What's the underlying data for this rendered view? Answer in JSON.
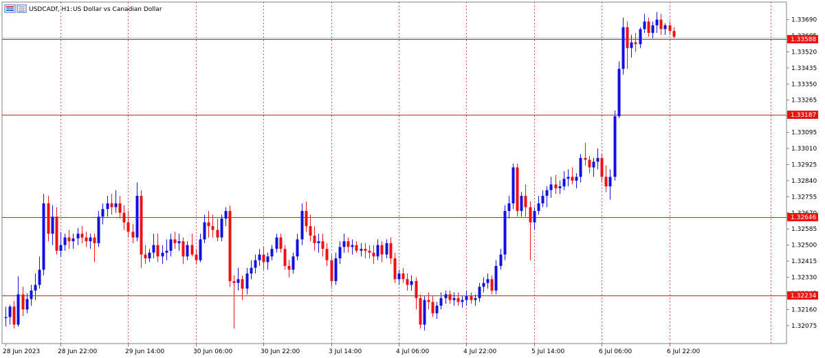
{
  "header": {
    "symbol": "USDCADf, H1:",
    "description": "US Dollar vs Canadian Dollar",
    "icon": "chart-window-icon"
  },
  "colors": {
    "bull": "#1010e0",
    "bear": "#ee1111",
    "grid": "#dd2222",
    "hline": "#cc2222",
    "bid": "#555555",
    "label_bg": "#ee1111"
  },
  "chart_data": {
    "type": "candlestick",
    "symbol": "USDCADf",
    "timeframe": "H1",
    "ylim": [
      1.3202,
      1.3375
    ],
    "y_ticks": [
      "1.33690",
      "1.33605",
      "1.33520",
      "1.33435",
      "1.33350",
      "1.33265",
      "1.33180",
      "1.33095",
      "1.33010",
      "1.32925",
      "1.32840",
      "1.32755",
      "1.32670",
      "1.32585",
      "1.32500",
      "1.32415",
      "1.32330",
      "1.32245",
      "1.32160",
      "1.32075"
    ],
    "x_labels": [
      {
        "index": 0,
        "label": "28 Jun 2023"
      },
      {
        "index": 13,
        "label": "28 Jun 22:00"
      },
      {
        "index": 29,
        "label": "29 Jun 14:00"
      },
      {
        "index": 45,
        "label": "30 Jun 06:00"
      },
      {
        "index": 61,
        "label": "30 Jun 22:00"
      },
      {
        "index": 77,
        "label": "3 Jul 14:00"
      },
      {
        "index": 93,
        "label": "4 Jul 06:00"
      },
      {
        "index": 109,
        "label": "4 Jul 22:00"
      },
      {
        "index": 125,
        "label": "5 Jul 14:00"
      },
      {
        "index": 141,
        "label": "6 Jul 06:00"
      },
      {
        "index": 157,
        "label": "6 Jul 22:00"
      }
    ],
    "extra_gridline_indices": [
      181
    ],
    "horizontal_lines": [
      {
        "price": 1.33187,
        "label": "1.33187"
      },
      {
        "price": 1.32646,
        "label": "1.32646"
      },
      {
        "price": 1.32234,
        "label": "1.32234"
      }
    ],
    "bid_line": {
      "price": 1.33588,
      "label": "1.33588"
    },
    "candles": [
      [
        1.32115,
        1.32175,
        1.3207,
        1.3212
      ],
      [
        1.3212,
        1.32185,
        1.3208,
        1.32175
      ],
      [
        1.32175,
        1.32205,
        1.3206,
        1.3208
      ],
      [
        1.3208,
        1.32335,
        1.3207,
        1.3224
      ],
      [
        1.3224,
        1.3228,
        1.32125,
        1.3216
      ],
      [
        1.3216,
        1.32245,
        1.3214,
        1.32215
      ],
      [
        1.32215,
        1.3229,
        1.3218,
        1.3226
      ],
      [
        1.3226,
        1.3235,
        1.3221,
        1.3229
      ],
      [
        1.3229,
        1.3244,
        1.3227,
        1.3237
      ],
      [
        1.3237,
        1.3277,
        1.3234,
        1.3272
      ],
      [
        1.3272,
        1.3276,
        1.3252,
        1.3256
      ],
      [
        1.3256,
        1.3271,
        1.325,
        1.3265
      ],
      [
        1.3265,
        1.327,
        1.3245,
        1.3247
      ],
      [
        1.3247,
        1.3257,
        1.3244,
        1.325
      ],
      [
        1.325,
        1.3256,
        1.3247,
        1.3254
      ],
      [
        1.3254,
        1.3258,
        1.3248,
        1.3252
      ],
      [
        1.3252,
        1.3256,
        1.3248,
        1.32535
      ],
      [
        1.32535,
        1.3259,
        1.325,
        1.3256
      ],
      [
        1.3256,
        1.326,
        1.3251,
        1.3254
      ],
      [
        1.3254,
        1.3257,
        1.3249,
        1.3252
      ],
      [
        1.3252,
        1.3256,
        1.3248,
        1.3254
      ],
      [
        1.3254,
        1.3256,
        1.3241,
        1.3251
      ],
      [
        1.3251,
        1.3268,
        1.3249,
        1.3265
      ],
      [
        1.3265,
        1.3272,
        1.3261,
        1.3269
      ],
      [
        1.3269,
        1.3276,
        1.3265,
        1.3272
      ],
      [
        1.3272,
        1.3277,
        1.3266,
        1.327
      ],
      [
        1.327,
        1.3279,
        1.3267,
        1.3272
      ],
      [
        1.3272,
        1.3276,
        1.3264,
        1.3267
      ],
      [
        1.3267,
        1.3271,
        1.3258,
        1.3262
      ],
      [
        1.3262,
        1.3268,
        1.3254,
        1.3257
      ],
      [
        1.3257,
        1.3261,
        1.3251,
        1.3254
      ],
      [
        1.3254,
        1.3283,
        1.3252,
        1.3276
      ],
      [
        1.3276,
        1.3279,
        1.3238,
        1.3245
      ],
      [
        1.3245,
        1.325,
        1.324,
        1.3243
      ],
      [
        1.3243,
        1.3248,
        1.3241,
        1.3246
      ],
      [
        1.3246,
        1.3256,
        1.3243,
        1.325
      ],
      [
        1.325,
        1.3256,
        1.3241,
        1.3244
      ],
      [
        1.3244,
        1.325,
        1.324,
        1.3246
      ],
      [
        1.3246,
        1.3253,
        1.3242,
        1.3247
      ],
      [
        1.3247,
        1.3256,
        1.3244,
        1.3253
      ],
      [
        1.3253,
        1.3257,
        1.3248,
        1.3251
      ],
      [
        1.3251,
        1.3256,
        1.3247,
        1.3252
      ],
      [
        1.3252,
        1.3254,
        1.324,
        1.3244
      ],
      [
        1.3244,
        1.3252,
        1.3242,
        1.325
      ],
      [
        1.325,
        1.3256,
        1.3244,
        1.3245
      ],
      [
        1.3245,
        1.3248,
        1.324,
        1.3242
      ],
      [
        1.3242,
        1.3256,
        1.3241,
        1.3253
      ],
      [
        1.3253,
        1.3266,
        1.3251,
        1.3262
      ],
      [
        1.3262,
        1.3268,
        1.3254,
        1.326
      ],
      [
        1.326,
        1.3266,
        1.3254,
        1.3258
      ],
      [
        1.3258,
        1.3264,
        1.3252,
        1.3254
      ],
      [
        1.3254,
        1.3266,
        1.3252,
        1.3264
      ],
      [
        1.3264,
        1.327,
        1.326,
        1.3268
      ],
      [
        1.3268,
        1.3271,
        1.3228,
        1.3231
      ],
      [
        1.3231,
        1.3234,
        1.3206,
        1.323
      ],
      [
        1.323,
        1.3238,
        1.3226,
        1.3232
      ],
      [
        1.3232,
        1.3234,
        1.3221,
        1.3227
      ],
      [
        1.3227,
        1.3238,
        1.3224,
        1.3235
      ],
      [
        1.3235,
        1.3242,
        1.3232,
        1.3238
      ],
      [
        1.3238,
        1.3245,
        1.3235,
        1.3242
      ],
      [
        1.3242,
        1.3248,
        1.3239,
        1.3245
      ],
      [
        1.3245,
        1.3249,
        1.3237,
        1.3241
      ],
      [
        1.3241,
        1.3246,
        1.3237,
        1.3244
      ],
      [
        1.3244,
        1.325,
        1.3242,
        1.3248
      ],
      [
        1.3248,
        1.3256,
        1.3246,
        1.3254
      ],
      [
        1.3254,
        1.3256,
        1.3246,
        1.3248
      ],
      [
        1.3248,
        1.325,
        1.3237,
        1.3239
      ],
      [
        1.3239,
        1.3242,
        1.3233,
        1.3237
      ],
      [
        1.3237,
        1.3246,
        1.3235,
        1.3244
      ],
      [
        1.3244,
        1.3256,
        1.3242,
        1.3253
      ],
      [
        1.3253,
        1.3272,
        1.325,
        1.3268
      ],
      [
        1.3268,
        1.3273,
        1.3257,
        1.326
      ],
      [
        1.326,
        1.3266,
        1.3252,
        1.3255
      ],
      [
        1.3255,
        1.326,
        1.3247,
        1.3251
      ],
      [
        1.3251,
        1.3256,
        1.3246,
        1.3252
      ],
      [
        1.3252,
        1.3256,
        1.3244,
        1.3248
      ],
      [
        1.3248,
        1.3251,
        1.3239,
        1.3242
      ],
      [
        1.3242,
        1.3245,
        1.3228,
        1.3231
      ],
      [
        1.3231,
        1.3246,
        1.3229,
        1.3243
      ],
      [
        1.3243,
        1.3252,
        1.324,
        1.3249
      ],
      [
        1.3249,
        1.3256,
        1.3246,
        1.3252
      ],
      [
        1.3252,
        1.3254,
        1.3246,
        1.3249
      ],
      [
        1.3249,
        1.3253,
        1.3245,
        1.325
      ],
      [
        1.325,
        1.3252,
        1.3246,
        1.3247
      ],
      [
        1.3247,
        1.3251,
        1.3244,
        1.3248
      ],
      [
        1.3248,
        1.3251,
        1.3243,
        1.3247
      ],
      [
        1.3247,
        1.325,
        1.3243,
        1.3246
      ],
      [
        1.3246,
        1.325,
        1.324,
        1.3244
      ],
      [
        1.3244,
        1.3253,
        1.3242,
        1.325
      ],
      [
        1.325,
        1.3252,
        1.3241,
        1.3245
      ],
      [
        1.3245,
        1.3253,
        1.3243,
        1.3251
      ],
      [
        1.3251,
        1.3254,
        1.324,
        1.3243
      ],
      [
        1.3243,
        1.3246,
        1.323,
        1.3232
      ],
      [
        1.3232,
        1.3237,
        1.3229,
        1.3235
      ],
      [
        1.3235,
        1.3238,
        1.323,
        1.3232
      ],
      [
        1.3232,
        1.3235,
        1.3226,
        1.3229
      ],
      [
        1.3229,
        1.3234,
        1.3226,
        1.3231
      ],
      [
        1.3231,
        1.3233,
        1.3216,
        1.3222
      ],
      [
        1.3222,
        1.3224,
        1.3206,
        1.3208
      ],
      [
        1.3208,
        1.3223,
        1.3205,
        1.3221
      ],
      [
        1.3221,
        1.3225,
        1.3216,
        1.322
      ],
      [
        1.322,
        1.3223,
        1.3212,
        1.3214
      ],
      [
        1.3214,
        1.322,
        1.3211,
        1.3218
      ],
      [
        1.3218,
        1.3225,
        1.3216,
        1.3222
      ],
      [
        1.3222,
        1.3226,
        1.3219,
        1.3224
      ],
      [
        1.3224,
        1.3226,
        1.3219,
        1.3221
      ],
      [
        1.3221,
        1.3225,
        1.3218,
        1.3222
      ],
      [
        1.3222,
        1.3225,
        1.3218,
        1.322
      ],
      [
        1.322,
        1.3223,
        1.3217,
        1.3221
      ],
      [
        1.3221,
        1.3226,
        1.3218,
        1.3223
      ],
      [
        1.3223,
        1.3225,
        1.3219,
        1.3221
      ],
      [
        1.3221,
        1.3224,
        1.3218,
        1.3222
      ],
      [
        1.3222,
        1.323,
        1.322,
        1.3228
      ],
      [
        1.3228,
        1.3233,
        1.3225,
        1.323
      ],
      [
        1.323,
        1.3235,
        1.3227,
        1.3232
      ],
      [
        1.3232,
        1.3234,
        1.3224,
        1.3226
      ],
      [
        1.3226,
        1.3242,
        1.3224,
        1.3239
      ],
      [
        1.3239,
        1.3248,
        1.3237,
        1.3245
      ],
      [
        1.3245,
        1.3271,
        1.3242,
        1.3268
      ],
      [
        1.3268,
        1.3276,
        1.3264,
        1.3272
      ],
      [
        1.3272,
        1.3293,
        1.3269,
        1.3291
      ],
      [
        1.3291,
        1.3293,
        1.3265,
        1.3268
      ],
      [
        1.3268,
        1.3278,
        1.3265,
        1.3276
      ],
      [
        1.3276,
        1.3282,
        1.3265,
        1.327
      ],
      [
        1.327,
        1.3273,
        1.3242,
        1.3262
      ],
      [
        1.3262,
        1.327,
        1.3258,
        1.3268
      ],
      [
        1.3268,
        1.3276,
        1.3266,
        1.3272
      ],
      [
        1.3272,
        1.3279,
        1.327,
        1.3276
      ],
      [
        1.3276,
        1.3281,
        1.327,
        1.3279
      ],
      [
        1.3279,
        1.3286,
        1.3275,
        1.3282
      ],
      [
        1.3282,
        1.3287,
        1.3277,
        1.328
      ],
      [
        1.328,
        1.3284,
        1.3277,
        1.3281
      ],
      [
        1.3281,
        1.3289,
        1.3279,
        1.3285
      ],
      [
        1.3285,
        1.329,
        1.3281,
        1.3286
      ],
      [
        1.3286,
        1.3291,
        1.3282,
        1.3284
      ],
      [
        1.3284,
        1.3288,
        1.328,
        1.3286
      ],
      [
        1.3286,
        1.3298,
        1.3283,
        1.3296
      ],
      [
        1.3296,
        1.3304,
        1.3292,
        1.3295
      ],
      [
        1.3295,
        1.3297,
        1.3288,
        1.3291
      ],
      [
        1.3291,
        1.3296,
        1.3286,
        1.3294
      ],
      [
        1.3294,
        1.3301,
        1.329,
        1.3296
      ],
      [
        1.3296,
        1.3298,
        1.3283,
        1.3286
      ],
      [
        1.3286,
        1.3292,
        1.3278,
        1.3281
      ],
      [
        1.3281,
        1.329,
        1.3274,
        1.3286
      ],
      [
        1.3286,
        1.3321,
        1.3284,
        1.3318
      ],
      [
        1.3318,
        1.3347,
        1.3317,
        1.3343
      ],
      [
        1.3343,
        1.337,
        1.334,
        1.3365
      ],
      [
        1.3365,
        1.3368,
        1.3343,
        1.3354
      ],
      [
        1.3354,
        1.3361,
        1.3349,
        1.3357
      ],
      [
        1.3357,
        1.3362,
        1.3352,
        1.3356
      ],
      [
        1.3356,
        1.3365,
        1.3354,
        1.3364
      ],
      [
        1.3364,
        1.3372,
        1.3362,
        1.3368
      ],
      [
        1.3368,
        1.337,
        1.336,
        1.3362
      ],
      [
        1.3362,
        1.3368,
        1.3359,
        1.3366
      ],
      [
        1.3366,
        1.3373,
        1.3362,
        1.3369
      ],
      [
        1.3369,
        1.3372,
        1.3361,
        1.3364
      ],
      [
        1.3364,
        1.3367,
        1.3361,
        1.3366
      ],
      [
        1.3366,
        1.3368,
        1.3361,
        1.3363
      ],
      [
        1.3363,
        1.3365,
        1.3359,
        1.336
      ]
    ]
  }
}
